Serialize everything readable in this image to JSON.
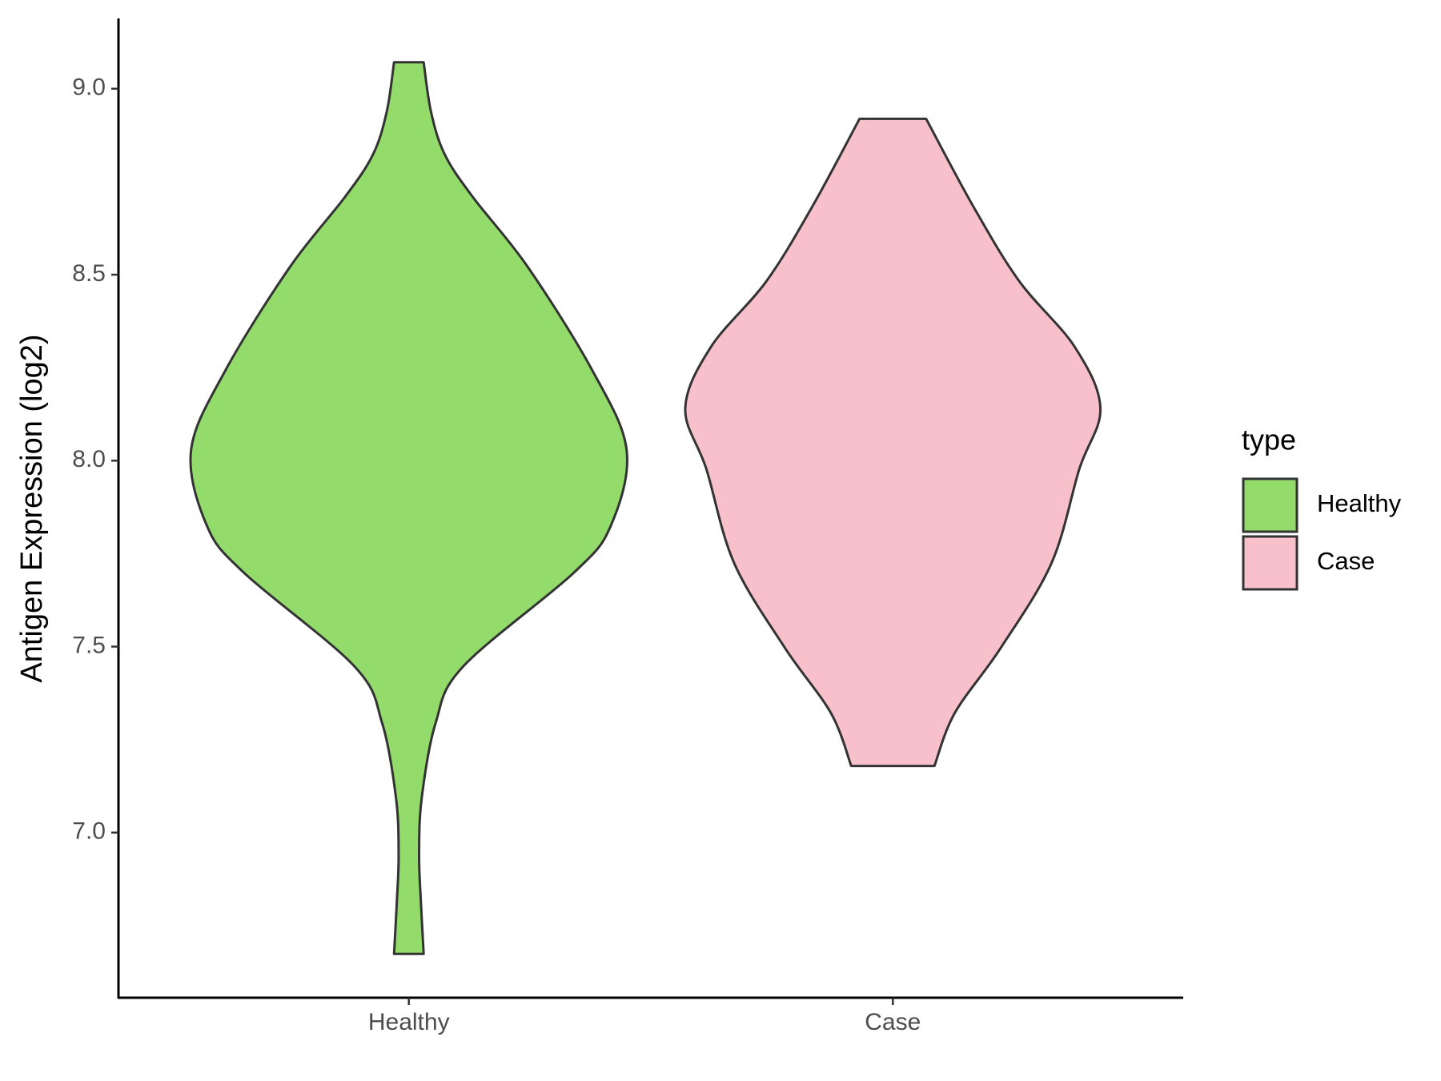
{
  "chart_data": {
    "type": "violin",
    "y_label": "Antigen Expression (log2)",
    "categories": [
      "Healthy",
      "Case"
    ],
    "legend_title": "type",
    "legend_position": "right",
    "ylim": [
      6.556,
      9.189
    ],
    "yticks": [
      {
        "value": 7,
        "label": "7.0"
      },
      7.5,
      {
        "value": 8,
        "label": "8.0"
      },
      8.5,
      {
        "value": 9,
        "label": "9.0"
      }
    ],
    "series": [
      {
        "name": "Healthy",
        "color": "#93dc6c",
        "y": [
          9.071,
          8.937,
          8.823,
          8.71,
          8.52,
          8.242,
          8.028,
          7.826,
          7.699,
          7.447,
          7.295,
          7.093,
          6.942,
          6.816,
          6.674
        ],
        "width": [
          0.068,
          0.102,
          0.165,
          0.292,
          0.547,
          0.843,
          1,
          0.928,
          0.758,
          0.25,
          0.123,
          0.059,
          0.047,
          0.055,
          0.068
        ]
      },
      {
        "name": "Case",
        "color": "#f7c0cb",
        "y": [
          8.919,
          8.684,
          8.482,
          8.306,
          8.141,
          7.977,
          7.725,
          7.497,
          7.321,
          7.179
        ],
        "width": [
          0.153,
          0.369,
          0.581,
          0.835,
          0.953,
          0.856,
          0.729,
          0.496,
          0.284,
          0.191
        ]
      }
    ]
  }
}
